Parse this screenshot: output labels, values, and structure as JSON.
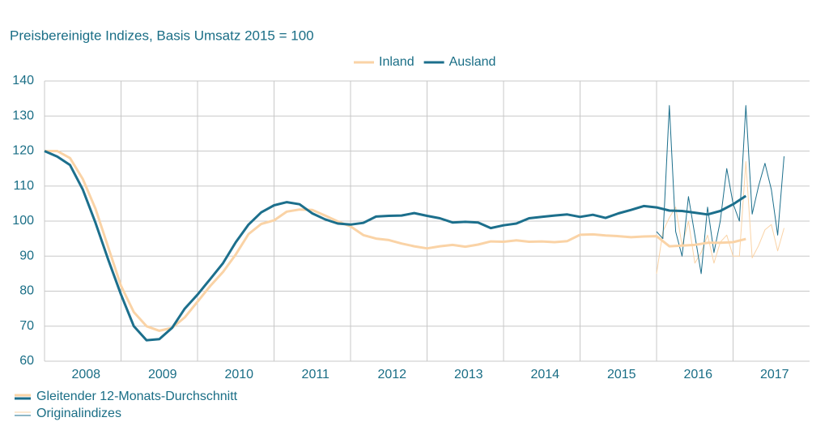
{
  "chart_data": {
    "type": "line",
    "title": "Preisbereinigte Indizes, Basis Umsatz 2015 = 100",
    "xlim": [
      2008,
      2018
    ],
    "xticks": [
      {
        "value": 2008,
        "label": "2008"
      },
      {
        "value": 2009,
        "label": "2009"
      },
      {
        "value": 2010,
        "label": "2010"
      },
      {
        "value": 2011,
        "label": "2011"
      },
      {
        "value": 2012,
        "label": "2012"
      },
      {
        "value": 2013,
        "label": "2013"
      },
      {
        "value": 2014,
        "label": "2014"
      },
      {
        "value": 2015,
        "label": "2015"
      },
      {
        "value": 2016,
        "label": "2016"
      },
      {
        "value": 2017,
        "label": "2017"
      }
    ],
    "ylim": [
      60,
      140
    ],
    "yticks": [
      60,
      70,
      80,
      90,
      100,
      110,
      120,
      130,
      140
    ],
    "grid": true,
    "series": [
      {
        "color": "#fad3a6",
        "width": 1,
        "x": [
          2016,
          2016.083,
          2016.167,
          2016.25,
          2016.333,
          2016.417,
          2016.5,
          2016.583,
          2016.667,
          2016.75,
          2016.833,
          2016.917,
          2017,
          2017.083,
          2017.167,
          2017.25,
          2017.333,
          2017.417,
          2017.5,
          2017.583,
          2017.667
        ],
        "values": [
          85,
          97,
          101,
          104,
          93,
          100,
          88,
          91,
          96,
          88,
          94,
          96,
          90,
          90,
          117,
          89.5,
          93,
          97.5,
          99,
          91.5,
          98
        ]
      },
      {
        "color": "#1c6f8c",
        "width": 1,
        "x": [
          2016,
          2016.083,
          2016.167,
          2016.25,
          2016.333,
          2016.417,
          2016.5,
          2016.583,
          2016.667,
          2016.75,
          2016.833,
          2016.917,
          2017,
          2017.083,
          2017.167,
          2017.25,
          2017.333,
          2017.417,
          2017.5,
          2017.583,
          2017.667
        ],
        "values": [
          97,
          95,
          133,
          97,
          90,
          107,
          96,
          85,
          104,
          91,
          100,
          115,
          105,
          100,
          133,
          102,
          110,
          116.5,
          109,
          96,
          118.5
        ]
      },
      {
        "name": "Inland",
        "color": "#fad3a6",
        "width": 3,
        "x": [
          2008,
          2008.167,
          2008.333,
          2008.5,
          2008.667,
          2008.833,
          2009,
          2009.167,
          2009.333,
          2009.5,
          2009.667,
          2009.833,
          2010,
          2010.167,
          2010.333,
          2010.5,
          2010.667,
          2010.833,
          2011,
          2011.167,
          2011.333,
          2011.5,
          2011.667,
          2011.833,
          2012,
          2012.167,
          2012.333,
          2012.5,
          2012.667,
          2012.833,
          2013,
          2013.167,
          2013.333,
          2013.5,
          2013.667,
          2013.833,
          2014,
          2014.167,
          2014.333,
          2014.5,
          2014.667,
          2014.833,
          2015,
          2015.167,
          2015.333,
          2015.5,
          2015.667,
          2015.833,
          2016,
          2016.167,
          2016.333,
          2016.5,
          2016.667,
          2016.833,
          2017,
          2017.167
        ],
        "values": [
          120,
          120,
          118,
          112,
          103.5,
          92.5,
          81.5,
          74,
          70,
          68.7,
          69.5,
          72.5,
          77,
          81.5,
          85.5,
          90.5,
          96.3,
          99.2,
          100.2,
          102.7,
          103.3,
          103.2,
          101.6,
          99.9,
          98.5,
          96,
          95,
          94.6,
          93.6,
          92.8,
          92.2,
          92.8,
          93.2,
          92.7,
          93.3,
          94.2,
          94.1,
          94.5,
          94.1,
          94.2,
          94,
          94.3,
          96.1,
          96.2,
          95.9,
          95.7,
          95.4,
          95.6,
          95.7,
          92.8,
          93,
          93.2,
          93.8,
          93.8,
          94,
          94.9
        ]
      },
      {
        "name": "Ausland",
        "color": "#1c6f8c",
        "width": 3,
        "x": [
          2008,
          2008.167,
          2008.333,
          2008.5,
          2008.667,
          2008.833,
          2009,
          2009.167,
          2009.333,
          2009.5,
          2009.667,
          2009.833,
          2010,
          2010.167,
          2010.333,
          2010.5,
          2010.667,
          2010.833,
          2011,
          2011.167,
          2011.333,
          2011.5,
          2011.667,
          2011.833,
          2012,
          2012.167,
          2012.333,
          2012.5,
          2012.667,
          2012.833,
          2013,
          2013.167,
          2013.333,
          2013.5,
          2013.667,
          2013.833,
          2014,
          2014.167,
          2014.333,
          2014.5,
          2014.667,
          2014.833,
          2015,
          2015.167,
          2015.333,
          2015.5,
          2015.667,
          2015.833,
          2016,
          2016.167,
          2016.333,
          2016.5,
          2016.667,
          2016.833,
          2017,
          2017.167
        ],
        "values": [
          120,
          118.4,
          116,
          109,
          99.5,
          89,
          79,
          70,
          66,
          66.3,
          69.5,
          75,
          79,
          83.5,
          88,
          94,
          99,
          102.5,
          104.5,
          105.4,
          104.8,
          102.2,
          100.5,
          99.3,
          99,
          99.5,
          101.3,
          101.5,
          101.6,
          102.3,
          101.5,
          100.8,
          99.6,
          99.8,
          99.6,
          98,
          98.8,
          99.3,
          100.8,
          101.2,
          101.6,
          101.9,
          101.2,
          101.8,
          100.9,
          102.2,
          103.2,
          104.3,
          103.9,
          103,
          102.9,
          102.4,
          101.9,
          102.9,
          104.8,
          107.2
        ]
      }
    ],
    "line_legend": [
      {
        "label": "Gleitender 12-Monats-Durchschnitt",
        "width": 3
      },
      {
        "label": "Originalindizes",
        "width": 1
      }
    ]
  }
}
